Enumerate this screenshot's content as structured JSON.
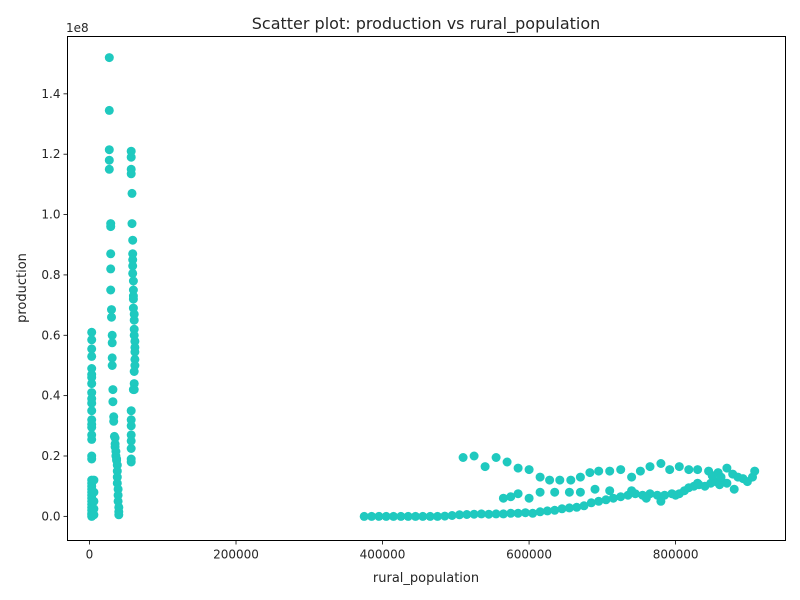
{
  "chart_data": {
    "type": "scatter",
    "title": "Scatter plot: production vs rural_population",
    "xlabel": "rural_population",
    "ylabel": "production",
    "y_offset_label": "1e8",
    "xlim": [
      -30000,
      950000
    ],
    "ylim": [
      -8000000,
      159000000
    ],
    "x_ticks": [
      0,
      200000,
      400000,
      600000,
      800000
    ],
    "x_tick_labels": [
      "0",
      "200000",
      "400000",
      "600000",
      "800000"
    ],
    "y_ticks": [
      0,
      20000000,
      40000000,
      60000000,
      80000000,
      100000000,
      120000000,
      140000000
    ],
    "y_tick_labels": [
      "0.0",
      "0.2",
      "0.4",
      "0.6",
      "0.8",
      "1.0",
      "1.2",
      "1.4"
    ],
    "grid": false,
    "marker_color": "#1fc9bf",
    "series": [
      {
        "points": [
          [
            3000,
            61000000
          ],
          [
            3000,
            58500000
          ],
          [
            3000,
            55500000
          ],
          [
            3000,
            53000000
          ],
          [
            3000,
            49000000
          ],
          [
            3000,
            47000000
          ],
          [
            3000,
            46000000
          ],
          [
            3000,
            44000000
          ],
          [
            3000,
            41000000
          ],
          [
            3000,
            39000000
          ],
          [
            3000,
            37500000
          ],
          [
            3000,
            35000000
          ],
          [
            3000,
            32000000
          ],
          [
            3000,
            30500000
          ],
          [
            3000,
            29500000
          ],
          [
            3000,
            27000000
          ],
          [
            3000,
            25500000
          ],
          [
            3000,
            20000000
          ],
          [
            3000,
            19000000
          ],
          [
            3000,
            12000000
          ],
          [
            3000,
            11000000
          ],
          [
            3000,
            10000000
          ],
          [
            3000,
            9000000
          ],
          [
            3000,
            8000000
          ],
          [
            3000,
            7000000
          ],
          [
            3000,
            6000000
          ],
          [
            3000,
            5000000
          ],
          [
            3000,
            4000000
          ],
          [
            3000,
            3000000
          ],
          [
            3000,
            2000000
          ],
          [
            3000,
            1000000
          ],
          [
            3000,
            500000
          ],
          [
            3000,
            0
          ],
          [
            6000,
            12000000
          ],
          [
            6000,
            8000000
          ],
          [
            6000,
            5000000
          ],
          [
            6000,
            2500000
          ],
          [
            6000,
            500000
          ],
          [
            27000,
            152000000
          ],
          [
            27000,
            134500000
          ],
          [
            27000,
            121500000
          ],
          [
            27000,
            118000000
          ],
          [
            27000,
            115000000
          ],
          [
            29000,
            97000000
          ],
          [
            29000,
            96000000
          ],
          [
            29000,
            87000000
          ],
          [
            29000,
            82000000
          ],
          [
            29000,
            75000000
          ],
          [
            30000,
            68500000
          ],
          [
            30000,
            66000000
          ],
          [
            31000,
            60000000
          ],
          [
            31000,
            57500000
          ],
          [
            31000,
            52500000
          ],
          [
            31000,
            50000000
          ],
          [
            32000,
            42000000
          ],
          [
            32000,
            38000000
          ],
          [
            33000,
            33000000
          ],
          [
            33000,
            31500000
          ],
          [
            34000,
            26500000
          ],
          [
            35000,
            26000000
          ],
          [
            35000,
            24000000
          ],
          [
            35000,
            23000000
          ],
          [
            36000,
            21500000
          ],
          [
            36000,
            20000000
          ],
          [
            37000,
            19000000
          ],
          [
            37000,
            18500000
          ],
          [
            38000,
            17000000
          ],
          [
            38000,
            15000000
          ],
          [
            38000,
            13000000
          ],
          [
            38000,
            11000000
          ],
          [
            39000,
            9000000
          ],
          [
            39000,
            7000000
          ],
          [
            39000,
            5000000
          ],
          [
            40000,
            3000000
          ],
          [
            40000,
            1500000
          ],
          [
            40000,
            500000
          ],
          [
            57000,
            121000000
          ],
          [
            57000,
            119000000
          ],
          [
            57000,
            115000000
          ],
          [
            57000,
            113500000
          ],
          [
            58000,
            107000000
          ],
          [
            58000,
            97000000
          ],
          [
            59000,
            91500000
          ],
          [
            59000,
            87000000
          ],
          [
            59000,
            85000000
          ],
          [
            59000,
            83000000
          ],
          [
            59000,
            80500000
          ],
          [
            60000,
            78000000
          ],
          [
            60000,
            75000000
          ],
          [
            60000,
            73000000
          ],
          [
            60000,
            72000000
          ],
          [
            60000,
            69000000
          ],
          [
            61000,
            67000000
          ],
          [
            61000,
            65000000
          ],
          [
            61000,
            62000000
          ],
          [
            61000,
            60000000
          ],
          [
            62000,
            58000000
          ],
          [
            62000,
            56000000
          ],
          [
            62000,
            54500000
          ],
          [
            62000,
            52000000
          ],
          [
            62000,
            50000000
          ],
          [
            61000,
            48000000
          ],
          [
            61000,
            44000000
          ],
          [
            61000,
            42000000
          ],
          [
            60000,
            42000000
          ],
          [
            57000,
            35000000
          ],
          [
            57000,
            32000000
          ],
          [
            57000,
            30000000
          ],
          [
            57000,
            27000000
          ],
          [
            57000,
            25000000
          ],
          [
            57000,
            22500000
          ],
          [
            57000,
            19000000
          ],
          [
            57000,
            18000000
          ],
          [
            375000,
            0
          ],
          [
            385000,
            0
          ],
          [
            395000,
            0
          ],
          [
            405000,
            0
          ],
          [
            415000,
            0
          ],
          [
            425000,
            0
          ],
          [
            435000,
            0
          ],
          [
            445000,
            0
          ],
          [
            455000,
            0
          ],
          [
            465000,
            0
          ],
          [
            475000,
            0
          ],
          [
            485000,
            100000
          ],
          [
            495000,
            300000
          ],
          [
            505000,
            500000
          ],
          [
            515000,
            600000
          ],
          [
            525000,
            700000
          ],
          [
            535000,
            800000
          ],
          [
            545000,
            700000
          ],
          [
            555000,
            800000
          ],
          [
            565000,
            800000
          ],
          [
            575000,
            1000000
          ],
          [
            585000,
            1000000
          ],
          [
            595000,
            1200000
          ],
          [
            605000,
            1000000
          ],
          [
            615000,
            1500000
          ],
          [
            625000,
            1800000
          ],
          [
            635000,
            2000000
          ],
          [
            645000,
            2500000
          ],
          [
            655000,
            2800000
          ],
          [
            665000,
            3000000
          ],
          [
            675000,
            3500000
          ],
          [
            685000,
            4500000
          ],
          [
            695000,
            5000000
          ],
          [
            705000,
            5500000
          ],
          [
            715000,
            6000000
          ],
          [
            725000,
            6500000
          ],
          [
            735000,
            7000000
          ],
          [
            745000,
            7500000
          ],
          [
            755000,
            7000000
          ],
          [
            765000,
            7500000
          ],
          [
            775000,
            7000000
          ],
          [
            785000,
            7000000
          ],
          [
            795000,
            7500000
          ],
          [
            805000,
            7500000
          ],
          [
            812000,
            8500000
          ],
          [
            818000,
            9500000
          ],
          [
            825000,
            10000000
          ],
          [
            832000,
            10500000
          ],
          [
            840000,
            10000000
          ],
          [
            848000,
            11000000
          ],
          [
            855000,
            11500000
          ],
          [
            862000,
            12000000
          ],
          [
            870000,
            11000000
          ],
          [
            565000,
            6000000
          ],
          [
            575000,
            6500000
          ],
          [
            585000,
            7500000
          ],
          [
            600000,
            6000000
          ],
          [
            615000,
            8000000
          ],
          [
            635000,
            8000000
          ],
          [
            655000,
            8000000
          ],
          [
            670000,
            8000000
          ],
          [
            690000,
            9000000
          ],
          [
            710000,
            8500000
          ],
          [
            740000,
            8500000
          ],
          [
            760000,
            6000000
          ],
          [
            780000,
            5000000
          ],
          [
            800000,
            7000000
          ],
          [
            830000,
            11000000
          ],
          [
            860000,
            10500000
          ],
          [
            880000,
            9000000
          ],
          [
            510000,
            19500000
          ],
          [
            525000,
            20000000
          ],
          [
            540000,
            16500000
          ],
          [
            555000,
            19500000
          ],
          [
            570000,
            18000000
          ],
          [
            585000,
            16000000
          ],
          [
            600000,
            15500000
          ],
          [
            615000,
            13000000
          ],
          [
            628000,
            12000000
          ],
          [
            642000,
            12000000
          ],
          [
            657000,
            12000000
          ],
          [
            670000,
            13000000
          ],
          [
            683000,
            14500000
          ],
          [
            695000,
            15000000
          ],
          [
            710000,
            15000000
          ],
          [
            725000,
            15500000
          ],
          [
            740000,
            13000000
          ],
          [
            752000,
            15000000
          ],
          [
            765000,
            16500000
          ],
          [
            780000,
            17500000
          ],
          [
            792000,
            15500000
          ],
          [
            805000,
            16500000
          ],
          [
            818000,
            15500000
          ],
          [
            830000,
            15500000
          ],
          [
            845000,
            15000000
          ],
          [
            858000,
            14500000
          ],
          [
            870000,
            16000000
          ],
          [
            878000,
            14000000
          ],
          [
            885000,
            13000000
          ],
          [
            892000,
            12500000
          ],
          [
            898000,
            11500000
          ],
          [
            905000,
            13000000
          ],
          [
            908000,
            15000000
          ],
          [
            850000,
            13500000
          ],
          [
            862000,
            13000000
          ]
        ]
      }
    ]
  }
}
